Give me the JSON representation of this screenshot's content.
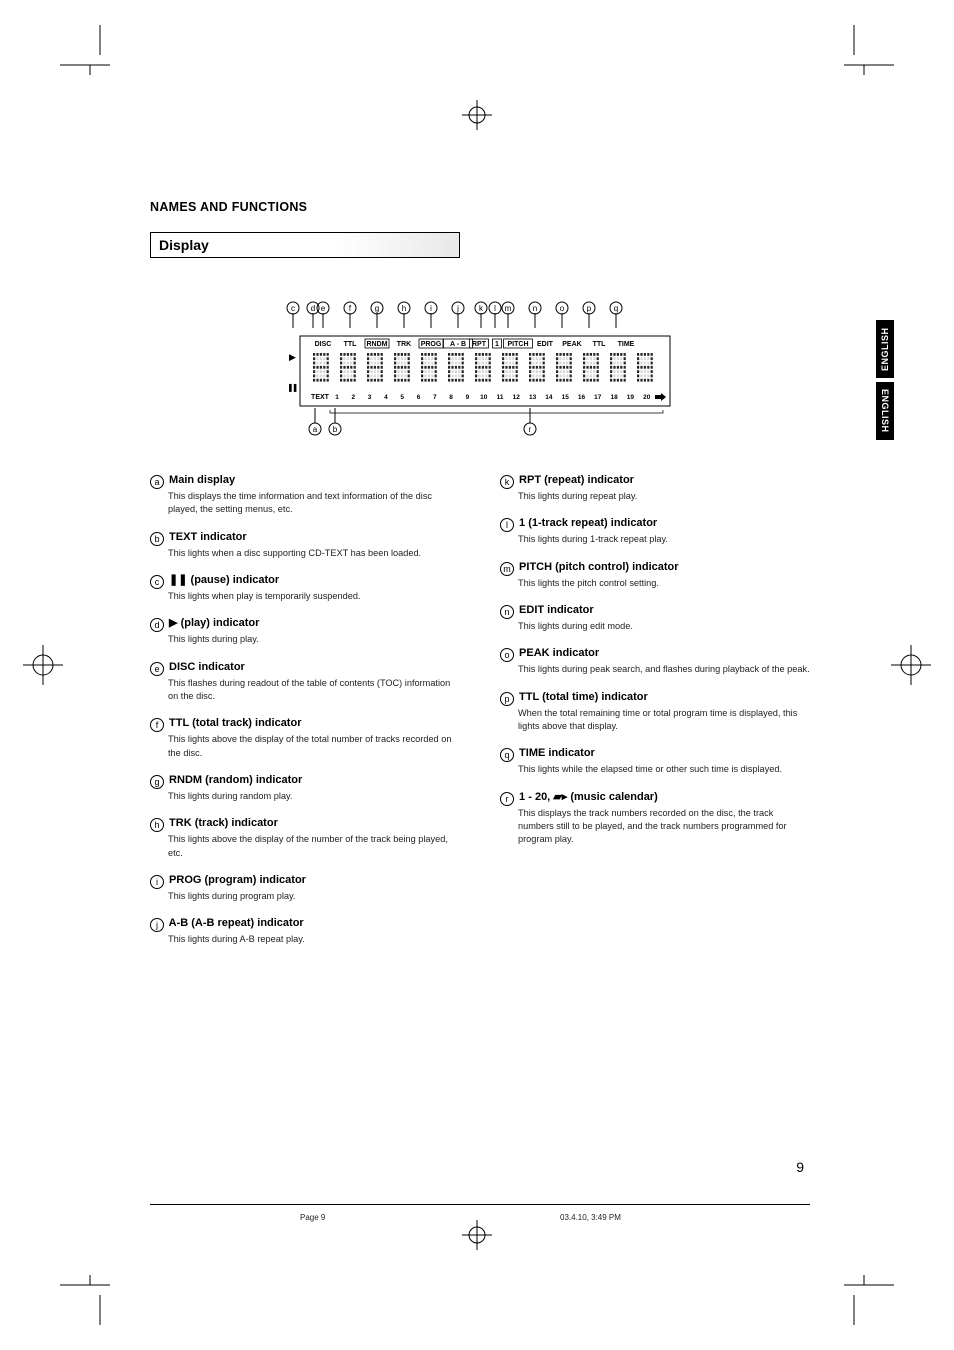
{
  "colors": {
    "text": "#000000",
    "bg": "#ffffff",
    "tab_bg": "#000000",
    "tab_fg": "#ffffff",
    "desc": "#222222"
  },
  "fonts": {
    "body": "Arial, Helvetica, sans-serif",
    "title_size": 12.5,
    "heading_size": 14,
    "item_head_size": 11,
    "item_desc_size": 9.2,
    "footer_size": 8,
    "tab_size": 9
  },
  "section_title": "NAMES AND FUNCTIONS",
  "heading": "Display",
  "side_tab_1": "ENGLISH",
  "side_tab_2": "ENGLISH",
  "page_number": "9",
  "footer_left": "Page 9",
  "footer_right": "03.4.10, 3:49 PM",
  "diagram": {
    "callout_letters_top": [
      "c",
      "d",
      "e",
      "f",
      "g",
      "h",
      "i",
      "j",
      "k",
      "l",
      "m",
      "n",
      "o",
      "p",
      "q"
    ],
    "callout_letters_bottom": [
      "a",
      "b",
      "r"
    ],
    "top_labels": [
      "DISC",
      "TTL",
      "RNDM",
      "TRK",
      "PROG",
      "A - B",
      "RPT",
      "1",
      "PITCH",
      "EDIT",
      "PEAK",
      "TTL",
      "TIME"
    ],
    "bottom_labels": [
      "TEXT",
      "1",
      "2",
      "3",
      "4",
      "5",
      "6",
      "7",
      "8",
      "9",
      "10",
      "11",
      "12",
      "13",
      "14",
      "15",
      "16",
      "17",
      "18",
      "19",
      "20"
    ],
    "boxed_labels": [
      "RNDM",
      "PROG",
      "A - B",
      "RPT",
      "1",
      "PITCH"
    ],
    "play_symbol": "▶",
    "pause_symbol": "❚❚",
    "overflow_symbol": "▰▸"
  },
  "left_items": [
    {
      "letter": "a",
      "title": "Main display",
      "desc": "This displays the time information and text information of the disc played, the setting menus, etc."
    },
    {
      "letter": "b",
      "title": "TEXT indicator",
      "desc": "This lights when a disc supporting CD-TEXT has been loaded."
    },
    {
      "letter": "c",
      "title": "❚❚ (pause) indicator",
      "desc": "This lights when play is temporarily suspended."
    },
    {
      "letter": "d",
      "title": "▶ (play) indicator",
      "desc": "This lights during play."
    },
    {
      "letter": "e",
      "title": "DISC indicator",
      "desc": "This flashes during readout of the table of contents (TOC) information on the disc."
    },
    {
      "letter": "f",
      "title": "TTL (total track) indicator",
      "desc": "This lights above the display of the total number of tracks recorded on the disc."
    },
    {
      "letter": "g",
      "title": "RNDM (random) indicator",
      "desc": "This lights during random play."
    },
    {
      "letter": "h",
      "title": "TRK (track) indicator",
      "desc": "This lights above the display of the number of the track being played, etc."
    },
    {
      "letter": "i",
      "title": "PROG (program) indicator",
      "desc": "This lights during program play."
    },
    {
      "letter": "j",
      "title": "A-B (A-B repeat) indicator",
      "desc": "This lights during A-B repeat play."
    }
  ],
  "right_items": [
    {
      "letter": "k",
      "title": "RPT (repeat) indicator",
      "desc": "This lights during repeat play."
    },
    {
      "letter": "l",
      "title": "1 (1-track repeat) indicator",
      "desc": "This lights during 1-track repeat play."
    },
    {
      "letter": "m",
      "title": "PITCH (pitch control) indicator",
      "desc": "This lights the pitch control setting."
    },
    {
      "letter": "n",
      "title": "EDIT indicator",
      "desc": "This lights during edit mode."
    },
    {
      "letter": "o",
      "title": "PEAK indicator",
      "desc": "This lights during peak search, and flashes during playback of the peak."
    },
    {
      "letter": "p",
      "title": "TTL (total time) indicator",
      "desc": "When the total remaining time or total program time is displayed, this lights above that display."
    },
    {
      "letter": "q",
      "title": "TIME indicator",
      "desc": "This lights while the elapsed time or other such time is displayed."
    },
    {
      "letter": "r",
      "title": "1 - 20, ▰▸ (music calendar)",
      "desc": "This displays the track numbers recorded on the disc, the track numbers still to be played, and the track numbers programmed for program play."
    }
  ]
}
